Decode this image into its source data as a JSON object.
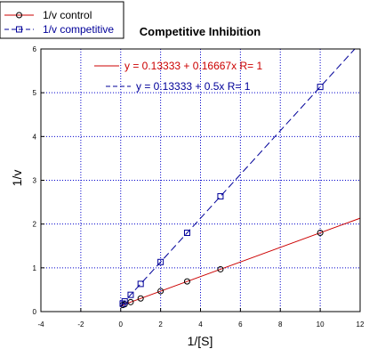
{
  "chart_data": {
    "type": "scatter",
    "title": "Competitive Inhibition",
    "xlabel": "1/[S]",
    "ylabel": "1/v",
    "xlim": [
      -4,
      12
    ],
    "ylim": [
      0,
      6
    ],
    "x_ticks": [
      "-4",
      "-2",
      "0",
      "2",
      "4",
      "6",
      "8",
      "10",
      "12"
    ],
    "y_ticks": [
      "0",
      "1",
      "2",
      "3",
      "4",
      "5",
      "6"
    ],
    "grid": true,
    "legend_position": "top-left",
    "series": [
      {
        "name": "1/v control",
        "color": "#000000",
        "fit_color": "#cc0000",
        "marker": "circle",
        "fit_style": "solid",
        "x": [
          0.1,
          0.2,
          0.5,
          1,
          2,
          3.33,
          5,
          10
        ],
        "y": [
          0.15,
          0.167,
          0.217,
          0.3,
          0.467,
          0.689,
          0.967,
          1.8
        ],
        "fit": {
          "intercept": 0.13333,
          "slope": 0.16667
        },
        "equation": "y = 0.13333 + 0.16667x   R= 1"
      },
      {
        "name": "1/v competitive",
        "color": "#000099",
        "fit_color": "#000099",
        "marker": "square",
        "fit_style": "dashed",
        "x": [
          0.1,
          0.2,
          0.5,
          1,
          2,
          3.33,
          5,
          10
        ],
        "y": [
          0.183,
          0.233,
          0.383,
          0.633,
          1.133,
          1.8,
          2.633,
          5.133
        ],
        "fit": {
          "intercept": 0.13333,
          "slope": 0.5
        },
        "equation": "y = 0.13333 + 0.5x   R= 1"
      }
    ]
  }
}
